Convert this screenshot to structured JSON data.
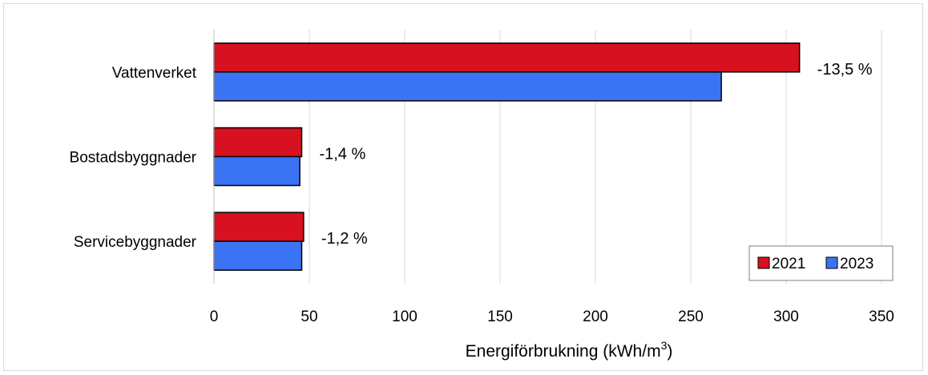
{
  "chart_data": {
    "type": "bar",
    "orientation": "horizontal",
    "categories": [
      "Vattenverket",
      "Bostadsbyggnader",
      "Servicebyggnader"
    ],
    "series": [
      {
        "name": "2021",
        "color": "#d7111f",
        "values": [
          307,
          46,
          47
        ]
      },
      {
        "name": "2023",
        "color": "#3b73f5",
        "values": [
          266,
          45,
          46
        ]
      }
    ],
    "change_labels": [
      "-13,5 %",
      "-1,4 %",
      "-1,2 %"
    ],
    "xlabel": "Energiförbrukning (kWh/m",
    "xlabel_sup": "3",
    "xlabel_end": ")",
    "xlim": [
      0,
      350
    ],
    "xticks": [
      "0",
      "50",
      "100",
      "150",
      "200",
      "250",
      "300",
      "350"
    ],
    "xtick_values": [
      0,
      50,
      100,
      150,
      200,
      250,
      300,
      350
    ],
    "grid": true,
    "legend_position": "bottom-right"
  }
}
